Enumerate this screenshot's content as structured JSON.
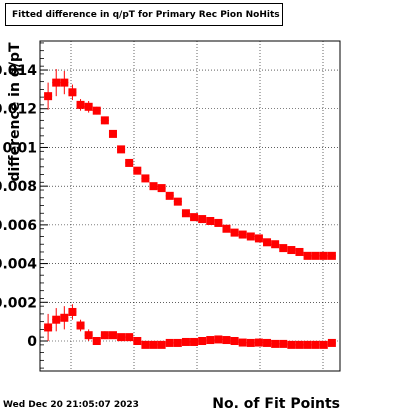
{
  "chart_data": {
    "type": "scatter",
    "title": "Fitted difference in q/pT for Primary Rec Pion NoHits",
    "xlabel": "No. of Fit Points",
    "ylabel": "difference in q/pT",
    "ylim": [
      -0.00155,
      0.0155
    ],
    "y_ticks": [
      0,
      0.002,
      0.004,
      0.006,
      0.008,
      0.01,
      0.012,
      0.014
    ],
    "y_tick_labels": [
      "0",
      "0.002",
      "0.004",
      "0.006",
      "0.008",
      "0.01",
      "0.012",
      "0.014"
    ],
    "grid": true,
    "marker_color": "#ff0000",
    "series": [
      {
        "x": [
          1,
          2,
          3,
          4,
          5,
          6,
          7,
          8,
          9,
          10,
          11,
          12,
          13,
          14,
          15,
          16,
          17,
          18,
          19,
          20,
          21,
          22,
          23,
          24,
          25,
          26,
          27,
          28,
          29,
          30,
          31,
          32,
          33,
          34,
          35,
          36
        ],
        "y": [
          0.01265,
          0.01335,
          0.01335,
          0.01285,
          0.0122,
          0.0121,
          0.0119,
          0.0114,
          0.0107,
          0.0099,
          0.0092,
          0.0088,
          0.0084,
          0.008,
          0.0079,
          0.0075,
          0.0072,
          0.0066,
          0.0064,
          0.0063,
          0.0062,
          0.0061,
          0.0058,
          0.0056,
          0.0055,
          0.0054,
          0.0053,
          0.0051,
          0.005,
          0.0048,
          0.0047,
          0.0046,
          0.0044,
          0.0044,
          0.0044,
          0.0044
        ],
        "yerr": [
          0.0007,
          0.0007,
          0.0006,
          0.0004,
          0.0003,
          0.0003,
          0.0002,
          0.0002,
          0.0001,
          0.0001,
          0.0001,
          0.0001,
          0.0001,
          0.0001,
          0.0001,
          0.0001,
          0.0001,
          0.0001,
          0.0001,
          0.0001,
          0.0001,
          0.0001,
          0.0001,
          0.0001,
          0.0001,
          0.0001,
          0.0001,
          0.0001,
          0.0001,
          0.0001,
          0.0001,
          0.0001,
          0.0001,
          0.0001,
          0.0001,
          0.0001
        ]
      },
      {
        "x": [
          1,
          2,
          3,
          4,
          5,
          6,
          7,
          8,
          9,
          10,
          11,
          12,
          13,
          14,
          15,
          16,
          17,
          18,
          19,
          20,
          21,
          22,
          23,
          24,
          25,
          26,
          27,
          28,
          29,
          30,
          31,
          32,
          33,
          34,
          35,
          36
        ],
        "y": [
          0.0007,
          0.0011,
          0.0012,
          0.0015,
          0.0008,
          0.0003,
          0.0,
          0.0003,
          0.0003,
          0.0002,
          0.0002,
          0.0,
          -0.0002,
          -0.0002,
          -0.0002,
          -0.0001,
          -0.0001,
          -5e-05,
          -5e-05,
          0.0,
          5e-05,
          8e-05,
          5e-05,
          0.0,
          -8e-05,
          -0.0001,
          -8e-05,
          -0.0001,
          -0.00015,
          -0.00015,
          -0.0002,
          -0.0002,
          -0.0002,
          -0.0002,
          -0.0002,
          -0.0001
        ],
        "yerr": [
          0.0007,
          0.0006,
          0.0006,
          0.0004,
          0.0003,
          0.0003,
          0.0002,
          0.0002,
          0.0001,
          0.0001,
          0.0001,
          0.0001,
          0.0001,
          0.0001,
          0.0001,
          0.0001,
          0.0001,
          0.0001,
          0.0001,
          0.0001,
          0.0001,
          0.0001,
          0.0001,
          0.0001,
          0.0001,
          0.0001,
          0.0001,
          0.0001,
          0.0001,
          0.0001,
          0.0001,
          0.0001,
          0.0001,
          0.0001,
          0.0001,
          0.0001
        ]
      }
    ]
  },
  "footer": {
    "date": "Wed Dec 20 21:05:07 2023"
  }
}
